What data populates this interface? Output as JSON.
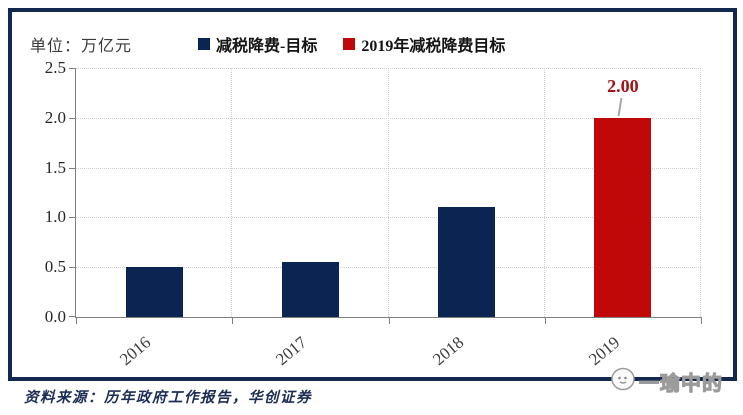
{
  "chart_data": {
    "type": "bar",
    "unit_label": "单位：万亿元",
    "categories": [
      "2016",
      "2017",
      "2018",
      "2019"
    ],
    "series": [
      {
        "name": "减税降费-目标",
        "color": "#0c2451",
        "values": [
          0.5,
          0.55,
          1.1,
          null
        ]
      },
      {
        "name": "2019年减税降费目标",
        "color": "#c00808",
        "values": [
          null,
          null,
          null,
          2.0
        ]
      }
    ],
    "bars": [
      {
        "category": "2016",
        "value": 0.5,
        "color": "#0c2451",
        "label": ""
      },
      {
        "category": "2017",
        "value": 0.55,
        "color": "#0c2451",
        "label": ""
      },
      {
        "category": "2018",
        "value": 1.1,
        "color": "#0c2451",
        "label": ""
      },
      {
        "category": "2019",
        "value": 2.0,
        "color": "#c00808",
        "label": "2.00"
      }
    ],
    "y_ticks": [
      "2.5",
      "2.0",
      "1.5",
      "1.0",
      "0.5",
      "0.0"
    ],
    "ylim": [
      0,
      2.5
    ],
    "grid": "dotted",
    "legend_position": "top",
    "data_label_color": "#a31016",
    "xlabel": "",
    "ylabel": ""
  },
  "footer": {
    "source": "资料来源：历年政府工作报告，华创证券"
  },
  "watermark": {
    "label": "一瑜中的"
  }
}
